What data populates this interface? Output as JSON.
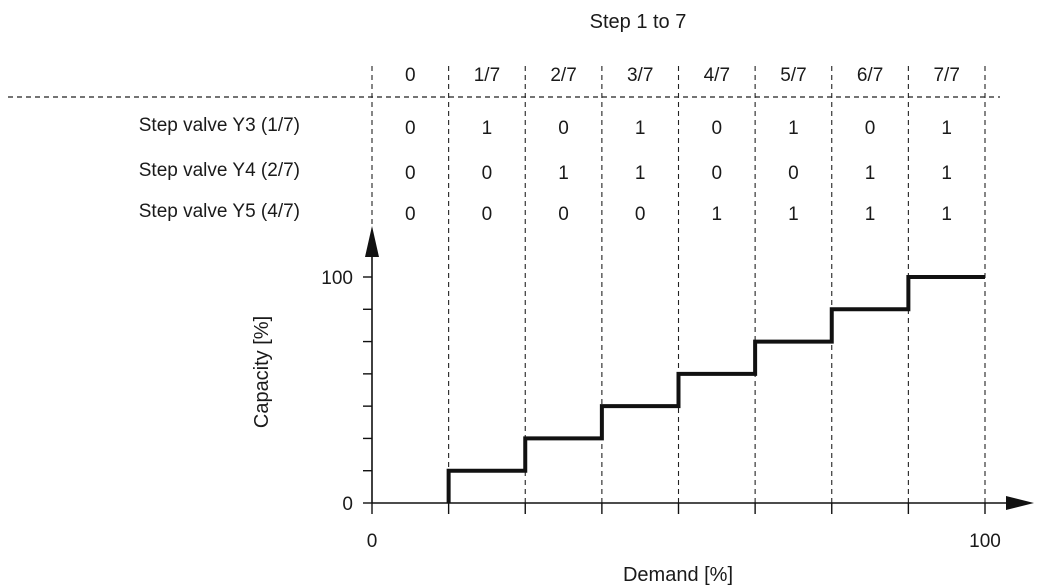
{
  "chart_data": {
    "type": "line",
    "title": "Step 1 to 7",
    "xlabel": "Demand [%]",
    "ylabel": "Capacity [%]",
    "xlim": [
      0,
      100
    ],
    "ylim": [
      0,
      100
    ],
    "x_ticks": [
      "0",
      "100"
    ],
    "y_ticks": [
      "0",
      "100"
    ],
    "step_headers": [
      "0",
      "1/7",
      "2/7",
      "3/7",
      "4/7",
      "5/7",
      "6/7",
      "7/7"
    ],
    "rows": [
      {
        "label": "Step valve Y3 (1/7)",
        "values": [
          "0",
          "1",
          "0",
          "1",
          "0",
          "1",
          "0",
          "1"
        ]
      },
      {
        "label": "Step valve Y4 (2/7)",
        "values": [
          "0",
          "0",
          "1",
          "1",
          "0",
          "0",
          "1",
          "1"
        ]
      },
      {
        "label": "Step valve Y5 (4/7)",
        "values": [
          "0",
          "0",
          "0",
          "0",
          "1",
          "1",
          "1",
          "1"
        ]
      }
    ],
    "step_boundaries_x": [
      0,
      12.5,
      25,
      37.5,
      50,
      62.5,
      75,
      87.5,
      100
    ],
    "series": [
      {
        "points": [
          [
            12.5,
            0
          ],
          [
            12.5,
            14.29
          ],
          [
            25,
            14.29
          ],
          [
            25,
            28.57
          ],
          [
            37.5,
            28.57
          ],
          [
            37.5,
            42.86
          ],
          [
            50,
            42.86
          ],
          [
            50,
            57.14
          ],
          [
            62.5,
            57.14
          ],
          [
            62.5,
            71.43
          ],
          [
            75,
            71.43
          ],
          [
            75,
            85.71
          ],
          [
            87.5,
            85.71
          ],
          [
            87.5,
            100
          ],
          [
            100,
            100
          ]
        ]
      }
    ],
    "grid": false,
    "legend": "none"
  }
}
